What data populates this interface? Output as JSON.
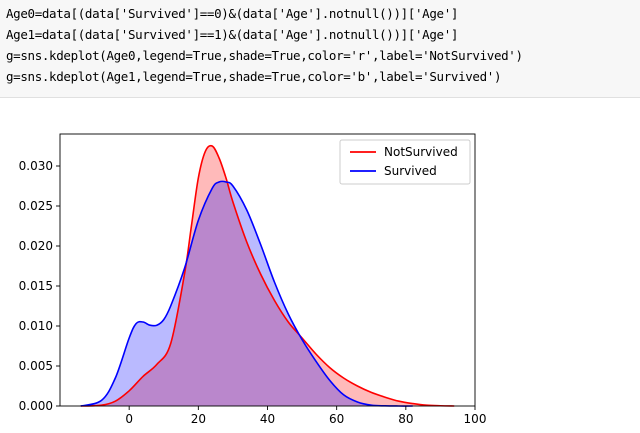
{
  "code": {
    "lines": [
      "Age0=data[(data['Survived']==0)&(data['Age'].notnull())]['Age']",
      "Age1=data[(data['Survived']==1)&(data['Age'].notnull())]['Age']",
      "g=sns.kdeplot(Age0,legend=True,shade=True,color='r',label='NotSurvived')",
      "g=sns.kdeplot(Age1,legend=True,shade=True,color='b',label='Survived')"
    ]
  },
  "chart_data": {
    "type": "area",
    "title": "",
    "xlabel": "",
    "ylabel": "",
    "xlim": [
      -20,
      100
    ],
    "ylim": [
      0,
      0.034
    ],
    "xticks": [
      "0",
      "20",
      "40",
      "60",
      "80",
      "100"
    ],
    "yticks": [
      "0.000",
      "0.005",
      "0.010",
      "0.015",
      "0.020",
      "0.025",
      "0.030"
    ],
    "legend_position": "top-right",
    "series": [
      {
        "name": "NotSurvived",
        "color": "#ff0000",
        "x": [
          -14,
          -8,
          -4,
          0,
          4,
          8,
          12,
          16,
          18,
          20,
          22,
          24,
          26,
          28,
          30,
          34,
          38,
          42,
          46,
          50,
          54,
          58,
          62,
          66,
          70,
          74,
          78,
          82,
          86,
          90,
          94
        ],
        "y": [
          0.0,
          0.0001,
          0.0006,
          0.0019,
          0.0037,
          0.0052,
          0.0078,
          0.0165,
          0.0225,
          0.0285,
          0.0318,
          0.0325,
          0.031,
          0.0285,
          0.0255,
          0.0205,
          0.0165,
          0.0132,
          0.0105,
          0.0085,
          0.0065,
          0.0048,
          0.0035,
          0.0025,
          0.0017,
          0.0011,
          0.0006,
          0.0003,
          0.0001,
          3e-05,
          0.0
        ]
      },
      {
        "name": "Survived",
        "color": "#0000ff",
        "x": [
          -14,
          -8,
          -4,
          0,
          2,
          4,
          6,
          8,
          10,
          12,
          16,
          20,
          24,
          26,
          28,
          30,
          34,
          38,
          42,
          46,
          50,
          54,
          58,
          62,
          66,
          70,
          74,
          78,
          82
        ],
        "y": [
          0.0,
          0.0007,
          0.0035,
          0.0085,
          0.0103,
          0.0105,
          0.0101,
          0.0101,
          0.0108,
          0.0125,
          0.0172,
          0.0232,
          0.0272,
          0.028,
          0.028,
          0.0275,
          0.0245,
          0.0202,
          0.0155,
          0.0115,
          0.0083,
          0.0056,
          0.0032,
          0.0014,
          0.0005,
          0.0001,
          2e-05,
          0.0,
          0.0
        ]
      }
    ]
  }
}
